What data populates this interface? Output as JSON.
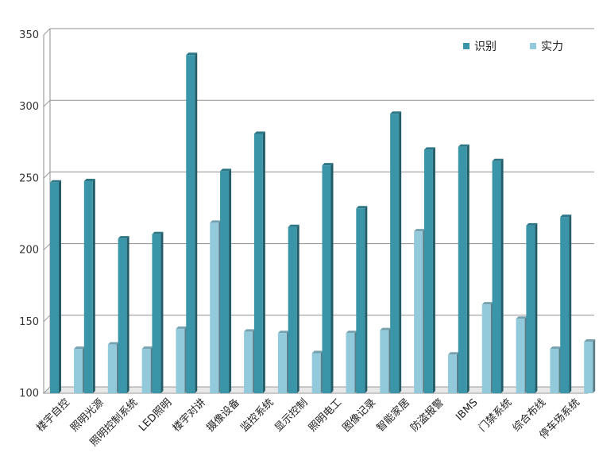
{
  "chart_data": {
    "type": "bar",
    "title": "",
    "xlabel": "",
    "ylabel": "",
    "ylim": [
      100,
      350
    ],
    "yticks": [
      100,
      150,
      200,
      250,
      300,
      350
    ],
    "grid": true,
    "legend_position": "top-right",
    "categories": [
      "楼宇自控",
      "照明光源",
      "照明控制系统",
      "LED照明",
      "楼宇对讲",
      "摄像设备",
      "监控系统",
      "显示控制",
      "照明电工",
      "图像记录",
      "智能家居",
      "防盗报警",
      "IBMS",
      "门禁系统",
      "综合布线",
      "停车场系统"
    ],
    "series": [
      {
        "name": "识别",
        "color": "#3a95a8",
        "values": [
          247,
          248,
          208,
          211,
          336,
          255,
          281,
          216,
          259,
          229,
          295,
          270,
          272,
          262,
          217,
          223
        ]
      },
      {
        "name": "实力",
        "color": "#93cadb",
        "values": [
          131,
          134,
          131,
          145,
          219,
          143,
          142,
          128,
          142,
          144,
          213,
          127,
          162,
          152,
          131,
          136
        ]
      }
    ]
  }
}
